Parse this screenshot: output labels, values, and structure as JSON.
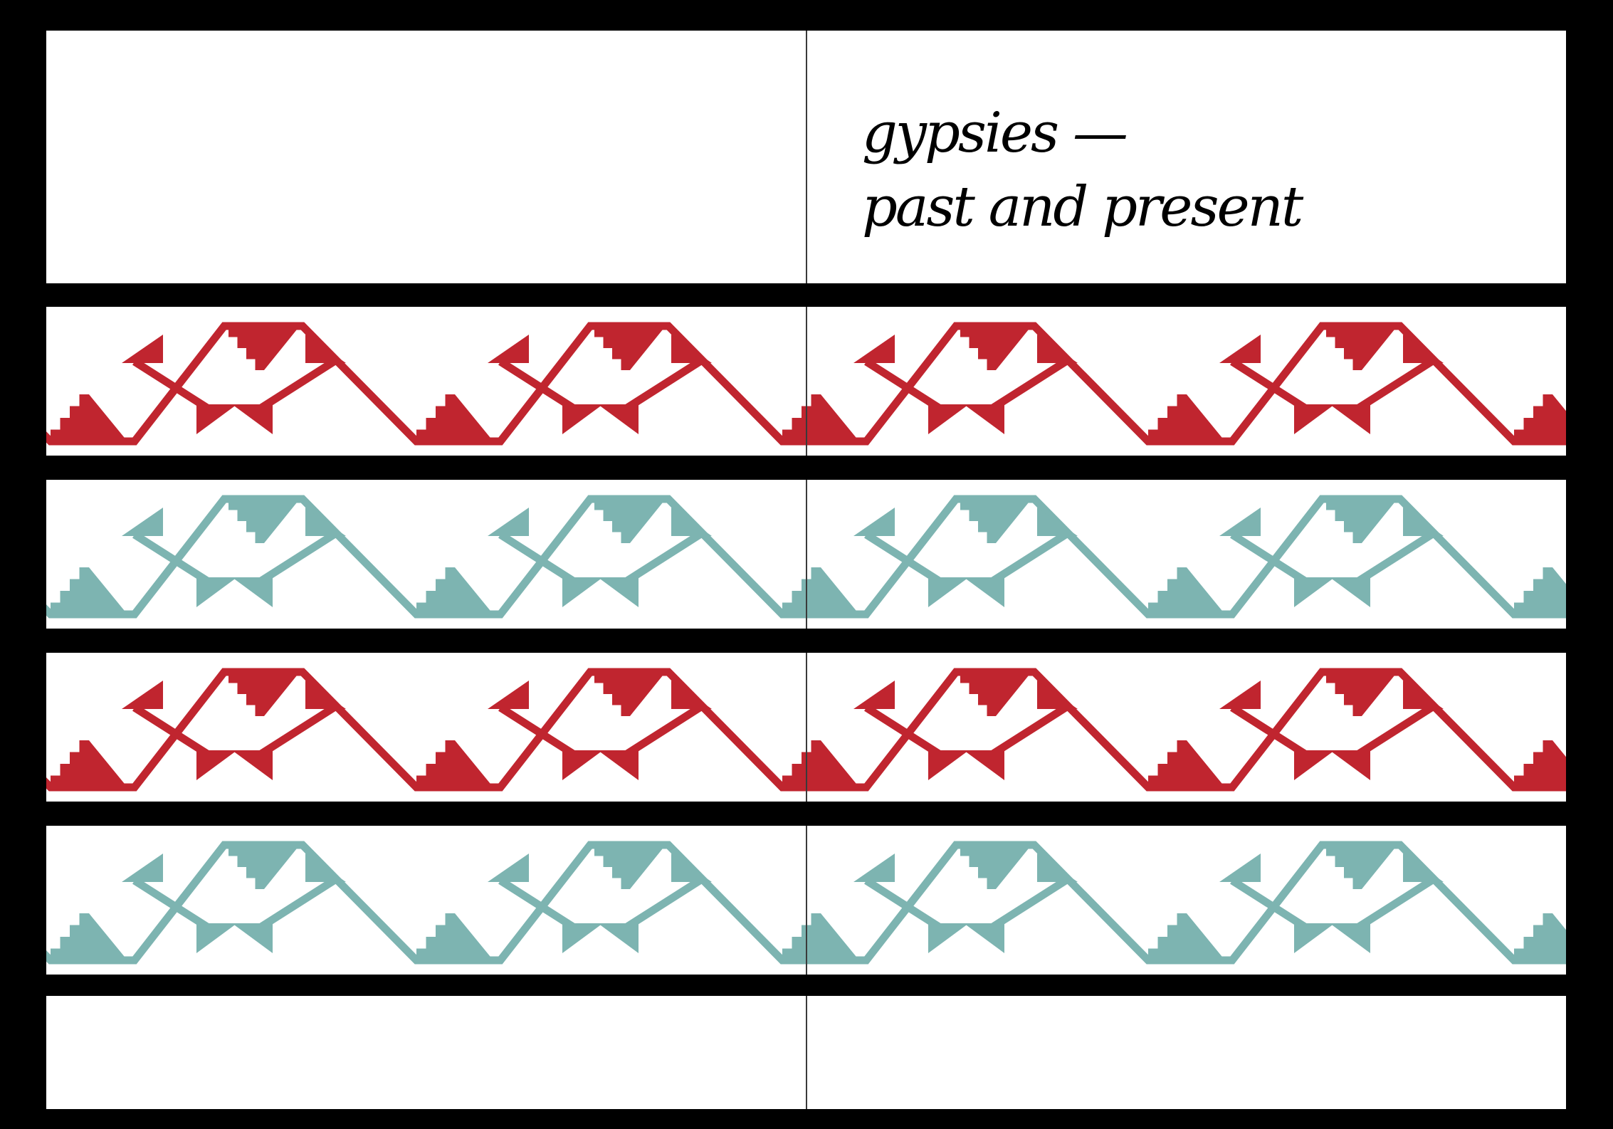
{
  "booklet": {
    "title_line_1": "gypsies —",
    "title_line_2": "past and present"
  },
  "colors": {
    "frame": "#000000",
    "paper": "#ffffff",
    "ornament_red": "#c0252f",
    "ornament_teal": "#7db4b1"
  },
  "ornament_bands": [
    {
      "color": "ornament_red"
    },
    {
      "color": "ornament_teal"
    },
    {
      "color": "ornament_red"
    },
    {
      "color": "ornament_teal"
    }
  ]
}
